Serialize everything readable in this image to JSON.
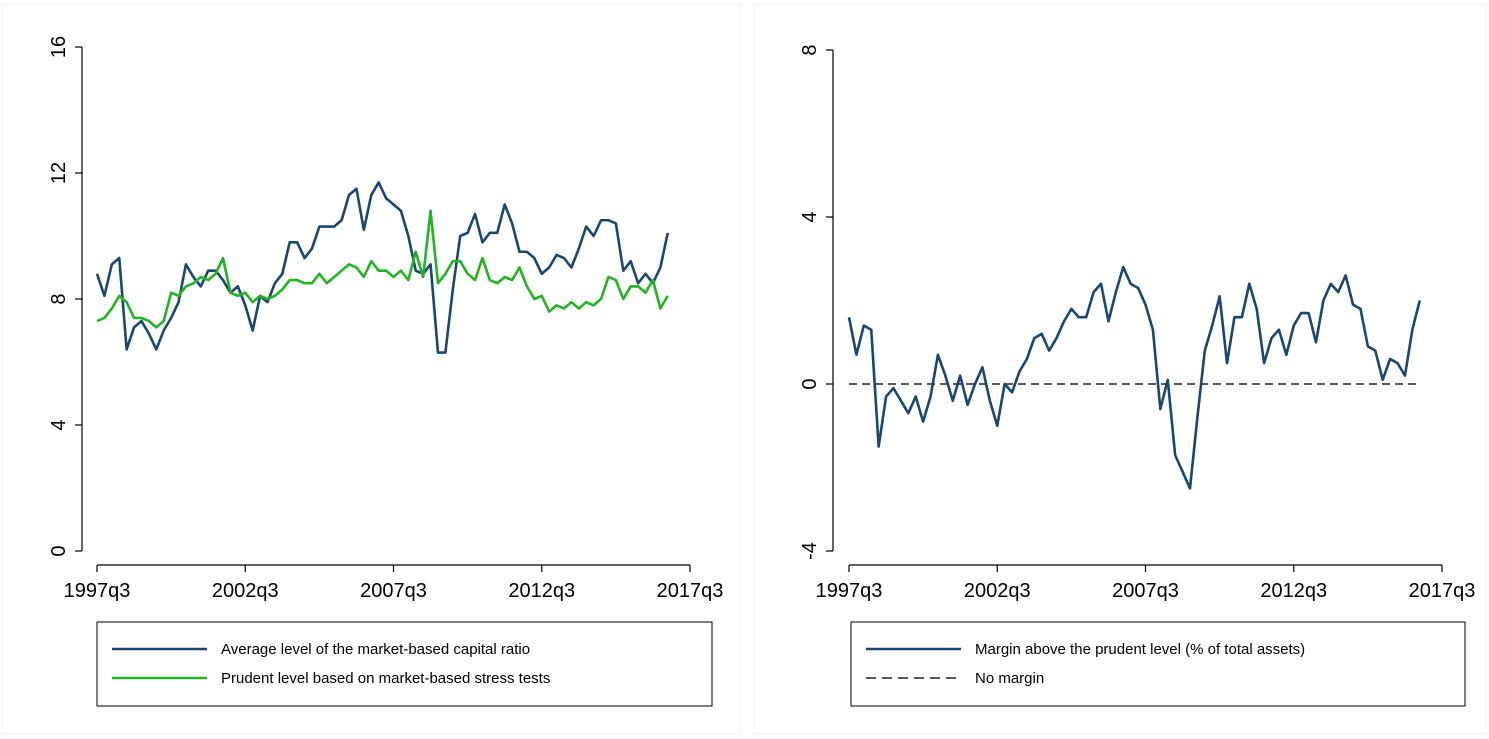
{
  "chart_data": [
    {
      "type": "line",
      "x": [
        "1997q3",
        "1997q4",
        "1998q1",
        "1998q2",
        "1998q3",
        "1998q4",
        "1999q1",
        "1999q2",
        "1999q3",
        "1999q4",
        "2000q1",
        "2000q2",
        "2000q3",
        "2000q4",
        "2001q1",
        "2001q2",
        "2001q3",
        "2001q4",
        "2002q1",
        "2002q2",
        "2002q3",
        "2002q4",
        "2003q1",
        "2003q2",
        "2003q3",
        "2003q4",
        "2004q1",
        "2004q2",
        "2004q3",
        "2004q4",
        "2005q1",
        "2005q2",
        "2005q3",
        "2005q4",
        "2006q1",
        "2006q2",
        "2006q3",
        "2006q4",
        "2007q1",
        "2007q2",
        "2007q3",
        "2007q4",
        "2008q1",
        "2008q2",
        "2008q3",
        "2008q4",
        "2009q1",
        "2009q2",
        "2009q3",
        "2009q4",
        "2010q1",
        "2010q2",
        "2010q3",
        "2010q4",
        "2011q1",
        "2011q2",
        "2011q3",
        "2011q4",
        "2012q1",
        "2012q2",
        "2012q3",
        "2012q4",
        "2013q1",
        "2013q2",
        "2013q3",
        "2013q4",
        "2014q1",
        "2014q2",
        "2014q3",
        "2014q4",
        "2015q1",
        "2015q2",
        "2015q3",
        "2015q4",
        "2016q1",
        "2016q2",
        "2016q3",
        "2016q4"
      ],
      "series": [
        {
          "name": "Average level of the market-based capital ratio",
          "color": "#1a476f",
          "values": [
            8.8,
            8.1,
            9.1,
            9.3,
            6.4,
            7.1,
            7.3,
            6.9,
            6.4,
            7.0,
            7.4,
            7.9,
            9.1,
            8.7,
            8.4,
            8.9,
            8.9,
            8.6,
            8.2,
            8.4,
            7.8,
            7.0,
            8.1,
            7.9,
            8.5,
            8.8,
            9.8,
            9.8,
            9.3,
            9.6,
            10.3,
            10.3,
            10.3,
            10.5,
            11.3,
            11.5,
            10.2,
            11.3,
            11.7,
            11.2,
            11.0,
            10.8,
            10.0,
            8.9,
            8.8,
            9.1,
            6.3,
            6.3,
            8.3,
            10.0,
            10.1,
            10.7,
            9.8,
            10.1,
            10.1,
            11.0,
            10.4,
            9.5,
            9.5,
            9.3,
            8.8,
            9.0,
            9.4,
            9.3,
            9.0,
            9.6,
            10.3,
            10.0,
            10.5,
            10.5,
            10.4,
            8.9,
            9.2,
            8.5,
            8.8,
            8.5,
            9.0,
            10.1
          ]
        },
        {
          "name": "Prudent level based on market-based stress tests",
          "color": "#22b422",
          "values": [
            7.3,
            7.4,
            7.7,
            8.1,
            7.9,
            7.4,
            7.4,
            7.3,
            7.1,
            7.3,
            8.2,
            8.1,
            8.4,
            8.5,
            8.7,
            8.6,
            8.8,
            9.3,
            8.2,
            8.1,
            8.2,
            7.9,
            8.1,
            8.0,
            8.1,
            8.3,
            8.6,
            8.6,
            8.5,
            8.5,
            8.8,
            8.5,
            8.7,
            8.9,
            9.1,
            9.0,
            8.7,
            9.2,
            8.9,
            8.9,
            8.7,
            8.9,
            8.6,
            9.5,
            8.7,
            10.8,
            8.5,
            8.8,
            9.2,
            9.2,
            8.8,
            8.6,
            9.3,
            8.6,
            8.5,
            8.7,
            8.6,
            9.0,
            8.4,
            8.0,
            8.1,
            7.6,
            7.8,
            7.7,
            7.9,
            7.7,
            7.9,
            7.8,
            8.0,
            8.7,
            8.6,
            8.0,
            8.4,
            8.4,
            8.2,
            8.6,
            7.7,
            8.1
          ]
        }
      ],
      "xlim": [
        "1997q3",
        "2017q3"
      ],
      "xticks": [
        "1997q3",
        "2002q3",
        "2007q3",
        "2012q3",
        "2017q3"
      ],
      "ylim": [
        0,
        16
      ],
      "yticks": [
        0,
        4,
        8,
        12,
        16
      ]
    },
    {
      "type": "line",
      "x": [
        "1997q3",
        "1997q4",
        "1998q1",
        "1998q2",
        "1998q3",
        "1998q4",
        "1999q1",
        "1999q2",
        "1999q3",
        "1999q4",
        "2000q1",
        "2000q2",
        "2000q3",
        "2000q4",
        "2001q1",
        "2001q2",
        "2001q3",
        "2001q4",
        "2002q1",
        "2002q2",
        "2002q3",
        "2002q4",
        "2003q1",
        "2003q2",
        "2003q3",
        "2003q4",
        "2004q1",
        "2004q2",
        "2004q3",
        "2004q4",
        "2005q1",
        "2005q2",
        "2005q3",
        "2005q4",
        "2006q1",
        "2006q2",
        "2006q3",
        "2006q4",
        "2007q1",
        "2007q2",
        "2007q3",
        "2007q4",
        "2008q1",
        "2008q2",
        "2008q3",
        "2008q4",
        "2009q1",
        "2009q2",
        "2009q3",
        "2009q4",
        "2010q1",
        "2010q2",
        "2010q3",
        "2010q4",
        "2011q1",
        "2011q2",
        "2011q3",
        "2011q4",
        "2012q1",
        "2012q2",
        "2012q3",
        "2012q4",
        "2013q1",
        "2013q2",
        "2013q3",
        "2013q4",
        "2014q1",
        "2014q2",
        "2014q3",
        "2014q4",
        "2015q1",
        "2015q2",
        "2015q3",
        "2015q4",
        "2016q1",
        "2016q2",
        "2016q3",
        "2016q4"
      ],
      "series": [
        {
          "name": "Margin above the prudent level (% of total assets)",
          "color": "#1a476f",
          "values": [
            1.6,
            0.7,
            1.4,
            1.3,
            -1.5,
            -0.3,
            -0.1,
            -0.4,
            -0.7,
            -0.3,
            -0.9,
            -0.3,
            0.7,
            0.2,
            -0.4,
            0.2,
            -0.5,
            0,
            0.4,
            -0.4,
            -1.0,
            0,
            -0.2,
            0.3,
            0.6,
            1.1,
            1.2,
            0.8,
            1.1,
            1.5,
            1.8,
            1.6,
            1.6,
            2.2,
            2.4,
            1.5,
            2.2,
            2.8,
            2.4,
            2.3,
            1.9,
            1.3,
            -0.6,
            0.1,
            -1.7,
            -2.1,
            -2.5,
            -0.8,
            0.8,
            1.4,
            2.1,
            0.5,
            1.6,
            1.6,
            2.4,
            1.8,
            0.5,
            1.1,
            1.3,
            0.7,
            1.4,
            1.7,
            1.7,
            1.0,
            2.0,
            2.4,
            2.2,
            2.6,
            1.9,
            1.8,
            0.9,
            0.8,
            0.1,
            0.6,
            0.5,
            0.2,
            1.3,
            2.0
          ]
        }
      ],
      "reference_line": {
        "name": "No margin",
        "value": 0,
        "color": "#222222",
        "dash": true
      },
      "xlim": [
        "1997q3",
        "2017q3"
      ],
      "xticks": [
        "1997q3",
        "2002q3",
        "2007q3",
        "2012q3",
        "2017q3"
      ],
      "ylim": [
        -4,
        8
      ],
      "yticks": [
        -4,
        0,
        4,
        8
      ]
    }
  ]
}
